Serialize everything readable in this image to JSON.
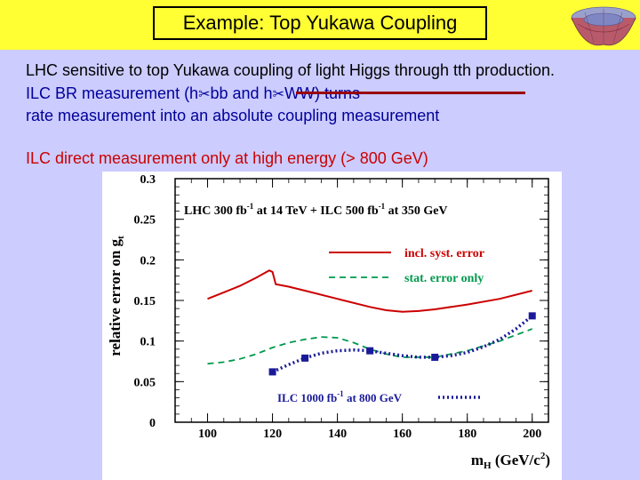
{
  "slide": {
    "title": "Example: Top Yukawa Coupling",
    "line1": "LHC sensitive to top Yukawa coupling of light Higgs through tth production.",
    "line2_a": "ILC BR measurement (h",
    "line2_b": "bb and h",
    "line2_c": "WW) turns",
    "line3": "rate measurement into an absolute coupling measurement",
    "line4": "ILC direct measurement only at high energy (> 800 GeV)",
    "arrow_glyph": "✂"
  },
  "chart_data": {
    "type": "line",
    "annotation": "LHC 300 fb-1 at 14 TeV + ILC 500 fb-1 at 350 GeV",
    "ylabel": "relative error on g_t",
    "xlabel": "m_H (GeV/c^2)",
    "xlim": [
      90,
      205
    ],
    "ylim": [
      0,
      0.3
    ],
    "xticks": [
      "100",
      "120",
      "140",
      "160",
      "180",
      "200"
    ],
    "yticks": [
      "0",
      "0.05",
      "0.1",
      "0.15",
      "0.2",
      "0.25",
      "0.3"
    ],
    "legend": [
      "incl. syst. error",
      "stat. error only",
      "ILC 1000 fb-1 at 800 GeV"
    ],
    "colors": {
      "syst": "#cc0000",
      "stat": "#00994d",
      "ilc": "#1a1a99"
    },
    "series": [
      {
        "name": "incl. syst. error",
        "x": [
          100,
          105,
          110,
          115,
          119,
          120,
          121,
          125,
          130,
          140,
          150,
          155,
          160,
          165,
          170,
          180,
          190,
          200
        ],
        "y": [
          0.152,
          0.16,
          0.168,
          0.178,
          0.187,
          0.185,
          0.17,
          0.167,
          0.162,
          0.152,
          0.142,
          0.138,
          0.136,
          0.137,
          0.139,
          0.145,
          0.152,
          0.162
        ]
      },
      {
        "name": "stat. error only",
        "x": [
          100,
          105,
          110,
          115,
          120,
          125,
          130,
          135,
          140,
          145,
          150,
          155,
          160,
          170,
          180,
          190,
          200
        ],
        "y": [
          0.072,
          0.074,
          0.078,
          0.084,
          0.092,
          0.098,
          0.102,
          0.105,
          0.104,
          0.098,
          0.09,
          0.084,
          0.08,
          0.08,
          0.088,
          0.1,
          0.115
        ]
      },
      {
        "name": "ILC 1000 fb-1 at 800 GeV",
        "x": [
          120,
          125,
          130,
          135,
          140,
          145,
          150,
          155,
          160,
          165,
          170,
          175,
          180,
          185,
          190,
          195,
          200
        ],
        "y": [
          0.062,
          0.071,
          0.079,
          0.085,
          0.088,
          0.089,
          0.088,
          0.085,
          0.082,
          0.08,
          0.08,
          0.082,
          0.086,
          0.093,
          0.102,
          0.115,
          0.131
        ]
      }
    ],
    "markers": {
      "x": [
        120,
        130,
        150,
        170,
        200
      ],
      "y": [
        0.062,
        0.079,
        0.088,
        0.08,
        0.131
      ]
    }
  }
}
